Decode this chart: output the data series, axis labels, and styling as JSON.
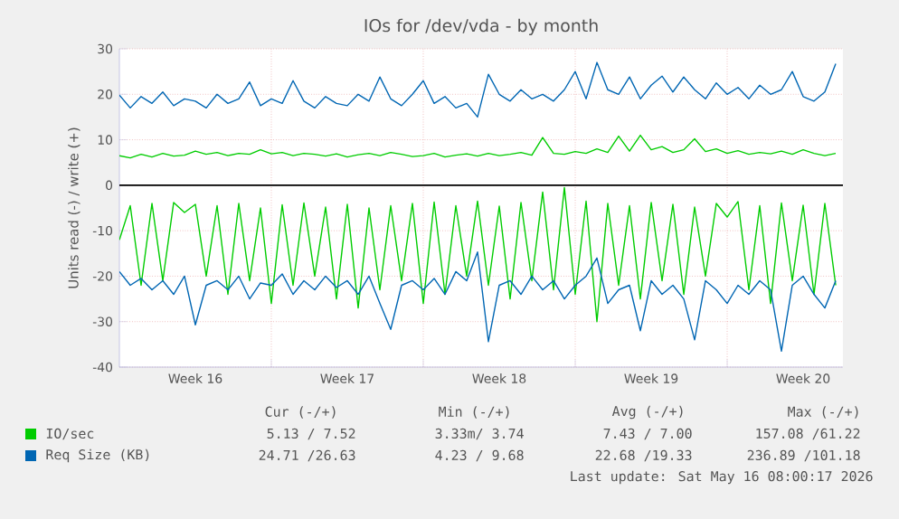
{
  "chart_data": {
    "type": "line",
    "title": "IOs for /dev/vda - by month",
    "ylabel": "Units read (-) / write (+)",
    "x": [
      "2026-04-13T00:00",
      "2026-04-13T12:00",
      "2026-04-14T00:00",
      "2026-04-14T12:00",
      "2026-04-15T00:00",
      "2026-04-15T12:00",
      "2026-04-16T00:00",
      "2026-04-16T12:00",
      "2026-04-17T00:00",
      "2026-04-17T12:00",
      "2026-04-18T00:00",
      "2026-04-18T12:00",
      "2026-04-19T00:00",
      "2026-04-19T12:00",
      "2026-04-20T00:00",
      "2026-04-20T12:00",
      "2026-04-21T00:00",
      "2026-04-21T12:00",
      "2026-04-22T00:00",
      "2026-04-22T12:00",
      "2026-04-23T00:00",
      "2026-04-23T12:00",
      "2026-04-24T00:00",
      "2026-04-24T12:00",
      "2026-04-25T00:00",
      "2026-04-25T12:00",
      "2026-04-26T00:00",
      "2026-04-26T12:00",
      "2026-04-27T00:00",
      "2026-04-27T12:00",
      "2026-04-28T00:00",
      "2026-04-28T12:00",
      "2026-04-29T00:00",
      "2026-04-29T12:00",
      "2026-04-30T00:00",
      "2026-04-30T12:00",
      "2026-05-01T00:00",
      "2026-05-01T12:00",
      "2026-05-02T00:00",
      "2026-05-02T12:00",
      "2026-05-03T00:00",
      "2026-05-03T12:00",
      "2026-05-04T00:00",
      "2026-05-04T12:00",
      "2026-05-05T00:00",
      "2026-05-05T12:00",
      "2026-05-06T00:00",
      "2026-05-06T12:00",
      "2026-05-07T00:00",
      "2026-05-07T12:00",
      "2026-05-08T00:00",
      "2026-05-08T12:00",
      "2026-05-09T00:00",
      "2026-05-09T12:00",
      "2026-05-10T00:00",
      "2026-05-10T12:00",
      "2026-05-11T00:00",
      "2026-05-11T12:00",
      "2026-05-12T00:00",
      "2026-05-12T12:00",
      "2026-05-13T00:00",
      "2026-05-13T12:00",
      "2026-05-14T00:00",
      "2026-05-14T12:00",
      "2026-05-15T00:00",
      "2026-05-15T12:00",
      "2026-05-16T00:00"
    ],
    "series": [
      {
        "name": "IO/sec",
        "color": "#00cc00",
        "values": [
          6.5,
          6,
          6.8,
          6.2,
          7,
          6.4,
          6.6,
          7.5,
          6.8,
          7.2,
          6.5,
          7,
          6.8,
          7.8,
          6.9,
          7.2,
          6.5,
          7,
          6.8,
          6.4,
          6.9,
          6.2,
          6.7,
          7,
          6.5,
          7.2,
          6.8,
          6.3,
          6.5,
          7,
          6.2,
          6.6,
          6.9,
          6.4,
          7,
          6.5,
          6.8,
          7.2,
          6.6,
          10.5,
          7,
          6.8,
          7.4,
          7,
          8,
          7.2,
          10.8,
          7.5,
          11,
          7.8,
          8.5,
          7.2,
          7.8,
          10.2,
          7.4,
          8,
          7,
          7.6,
          6.8,
          7.2,
          6.9,
          7.5,
          6.8,
          7.8,
          7,
          6.5,
          7
        ]
      },
      {
        "color": "#00cc00",
        "values": [
          -12,
          -4.5,
          -22,
          -4,
          -21,
          -3.8,
          -6,
          -4.2,
          -20,
          -4.5,
          -24,
          -4,
          -21,
          -5,
          -26,
          -4.3,
          -22,
          -3.9,
          -20,
          -4.8,
          -25,
          -4.2,
          -27,
          -5,
          -23,
          -4.5,
          -21,
          -4,
          -26,
          -3.7,
          -24,
          -4.5,
          -20,
          -3.5,
          -22,
          -4.6,
          -25,
          -3.8,
          -21,
          -1.5,
          -23,
          -0.5,
          -24,
          -3.5,
          -30,
          -4,
          -22,
          -4.5,
          -25,
          -3.8,
          -21,
          -4.2,
          -24,
          -4.8,
          -20,
          -4,
          -7,
          -3.6,
          -23,
          -4.5,
          -26,
          -3.9,
          -21,
          -4.4,
          -24,
          -4,
          -22
        ]
      },
      {
        "name": "Req Size (KB)",
        "color": "#0066b3",
        "values": [
          19.8,
          17,
          19.5,
          18,
          20.5,
          17.5,
          19,
          18.5,
          17,
          20,
          18,
          19,
          22.7,
          17.5,
          19,
          18,
          23,
          18.5,
          17,
          19.5,
          18,
          17.5,
          20,
          18.5,
          23.8,
          19,
          17.5,
          20,
          23,
          18,
          19.5,
          17,
          18,
          15,
          24.4,
          20,
          18.5,
          21,
          19,
          20,
          18.5,
          21,
          25,
          19,
          27,
          21,
          20,
          23.8,
          19,
          22,
          24,
          20.5,
          23.8,
          21,
          19,
          22.5,
          20,
          21.5,
          19,
          22,
          20,
          21,
          25,
          19.5,
          18.5,
          20.5,
          26.7
        ]
      },
      {
        "color": "#0066b3",
        "values": [
          -19,
          -22,
          -20.5,
          -23,
          -21,
          -24,
          -20,
          -30.7,
          -22,
          -21,
          -23,
          -20,
          -25,
          -21.5,
          -22,
          -19.5,
          -24,
          -21,
          -23,
          -20,
          -22.5,
          -21,
          -24,
          -20,
          -26,
          -31.7,
          -22,
          -21,
          -23,
          -20.5,
          -24,
          -19,
          -21,
          -14.7,
          -34.4,
          -22,
          -21,
          -24,
          -20,
          -23,
          -21,
          -25,
          -22,
          -20,
          -16,
          -26,
          -23,
          -22,
          -32,
          -21,
          -24,
          -22,
          -25,
          -34,
          -21,
          -23,
          -26,
          -22,
          -24,
          -21,
          -23,
          -36.5,
          -22,
          -20,
          -24,
          -27,
          -21
        ]
      }
    ],
    "xlim": [
      "2026-04-13T00:00",
      "2026-05-16T08:00"
    ],
    "ylim": [
      -40,
      30
    ],
    "xticks": [
      {
        "value": "2026-04-16T12:00",
        "label": "Week 16"
      },
      {
        "value": "2026-04-20T00:00",
        "label": null
      },
      {
        "value": "2026-04-23T12:00",
        "label": "Week 17"
      },
      {
        "value": "2026-04-27T00:00",
        "label": null
      },
      {
        "value": "2026-04-30T12:00",
        "label": "Week 18"
      },
      {
        "value": "2026-05-04T00:00",
        "label": null
      },
      {
        "value": "2026-05-07T12:00",
        "label": "Week 19"
      },
      {
        "value": "2026-05-11T00:00",
        "label": null
      },
      {
        "value": "2026-05-14T12:00",
        "label": "Week 20"
      }
    ],
    "yticks": [
      -40,
      -30,
      -20,
      -10,
      0,
      10,
      20,
      30
    ],
    "grid": true,
    "legend": "bottom",
    "ref_lines": [
      {
        "axis": "y",
        "value": 0,
        "color": "#000000"
      }
    ],
    "annotations": [
      "Cur (-/+)",
      "Min (-/+)",
      "Avg (-/+)",
      "Max (-/+)",
      "5.13 / 7.52",
      "3.33m/ 3.74",
      "7.43 / 7.00",
      "157.08 /61.22",
      "24.71 /26.63",
      "4.23 / 9.68",
      "22.68 /19.33",
      "236.89 /101.18",
      "Last update: Sat May 16 08:00:17 2026"
    ]
  }
}
